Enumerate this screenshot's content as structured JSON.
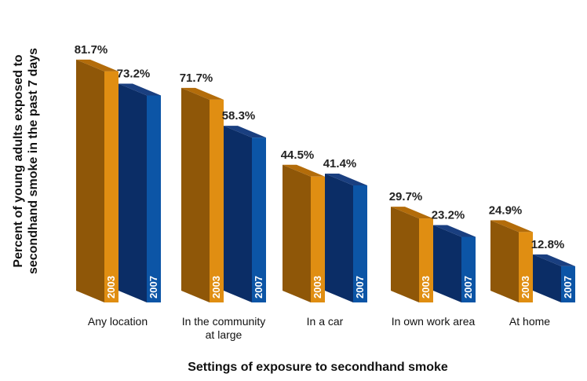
{
  "chart_data": {
    "type": "bar",
    "title": "",
    "xlabel": "Settings of exposure to secondhand smoke",
    "ylabel_lines": [
      "Percent of young adults exposed to",
      "secondhand smoke in the past 7 days"
    ],
    "ylim": [
      0,
      100
    ],
    "categories": [
      {
        "lines": [
          "Any location"
        ]
      },
      {
        "lines": [
          "In the community",
          "at large"
        ]
      },
      {
        "lines": [
          "In a car"
        ]
      },
      {
        "lines": [
          "In own work area"
        ]
      },
      {
        "lines": [
          "At home"
        ]
      }
    ],
    "series": [
      {
        "name": "2003",
        "values": [
          81.7,
          71.7,
          44.5,
          29.7,
          24.9
        ],
        "labels": [
          "81.7%",
          "71.7%",
          "44.5%",
          "29.7%",
          "24.9%"
        ],
        "color_front": "#e08e12",
        "color_side": "#8f5708",
        "color_top": "#b36c0a"
      },
      {
        "name": "2007",
        "values": [
          73.2,
          58.3,
          41.4,
          23.2,
          12.8
        ],
        "labels": [
          "73.2%",
          "58.3%",
          "41.4%",
          "23.2%",
          "12.8%"
        ],
        "color_front": "#0c55a6",
        "color_side": "#0b2d66",
        "color_top": "#1a3f80"
      }
    ],
    "grid": false,
    "legend": "none"
  }
}
